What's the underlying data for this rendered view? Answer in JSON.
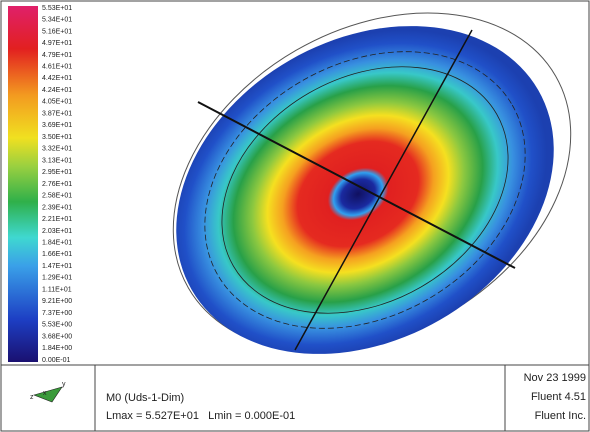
{
  "colorbar": {
    "labels": [
      "5.53E+01",
      "5.34E+01",
      "5.16E+01",
      "4.97E+01",
      "4.79E+01",
      "4.61E+01",
      "4.42E+01",
      "4.24E+01",
      "4.05E+01",
      "3.87E+01",
      "3.69E+01",
      "3.50E+01",
      "3.32E+01",
      "3.13E+01",
      "2.95E+01",
      "2.76E+01",
      "2.58E+01",
      "2.39E+01",
      "2.21E+01",
      "2.03E+01",
      "1.84E+01",
      "1.66E+01",
      "1.47E+01",
      "1.29E+01",
      "1.11E+01",
      "9.21E+00",
      "7.37E+00",
      "5.53E+00",
      "3.68E+00",
      "1.84E+00",
      "0.00E-01"
    ]
  },
  "footer": {
    "axis_icon": [
      "z",
      "x",
      "y"
    ],
    "title": "M0 (Uds-1-Dim)",
    "range": "Lmax = 5.527E+01   Lmin = 0.000E-01",
    "date": "Nov 23 1999",
    "version": "Fluent 4.51",
    "company": "Fluent Inc."
  }
}
